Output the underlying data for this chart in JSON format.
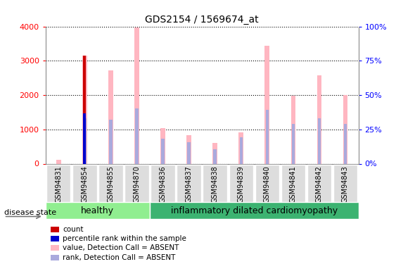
{
  "title": "GDS2154 / 1569674_at",
  "samples": [
    "GSM94831",
    "GSM94854",
    "GSM94855",
    "GSM94870",
    "GSM94836",
    "GSM94837",
    "GSM94838",
    "GSM94839",
    "GSM94840",
    "GSM94841",
    "GSM94842",
    "GSM94843"
  ],
  "value_absent": [
    120,
    3150,
    2720,
    3970,
    1030,
    840,
    610,
    910,
    3440,
    1980,
    2570,
    2010
  ],
  "rank_absent": [
    null,
    1320,
    1280,
    1610,
    730,
    620,
    430,
    770,
    1560,
    1160,
    1320,
    1160
  ],
  "count_val": [
    null,
    3150,
    null,
    null,
    null,
    null,
    null,
    null,
    null,
    null,
    null,
    null
  ],
  "percentile_val": [
    null,
    1460,
    null,
    null,
    null,
    null,
    null,
    null,
    null,
    null,
    null,
    null
  ],
  "groups": {
    "healthy": [
      0,
      1,
      2,
      3
    ],
    "inflammatory": [
      4,
      5,
      6,
      7,
      8,
      9,
      10,
      11
    ]
  },
  "group_labels": [
    "healthy",
    "inflammatory dilated cardiomyopathy"
  ],
  "group_colors": [
    "#90EE90",
    "#3CB371"
  ],
  "ylim_left": [
    0,
    4000
  ],
  "ylim_right": [
    0,
    100
  ],
  "yticks_left": [
    0,
    1000,
    2000,
    3000,
    4000
  ],
  "yticks_right": [
    0,
    25,
    50,
    75,
    100
  ],
  "bar_color_absent": "#FFB6C1",
  "bar_color_rank_absent": "#AAAADD",
  "bar_color_count": "#CC0000",
  "bar_color_percentile": "#0000CC",
  "legend_labels": [
    "count",
    "percentile rank within the sample",
    "value, Detection Call = ABSENT",
    "rank, Detection Call = ABSENT"
  ],
  "legend_colors": [
    "#CC0000",
    "#0000CC",
    "#FFB6C1",
    "#AAAADD"
  ]
}
